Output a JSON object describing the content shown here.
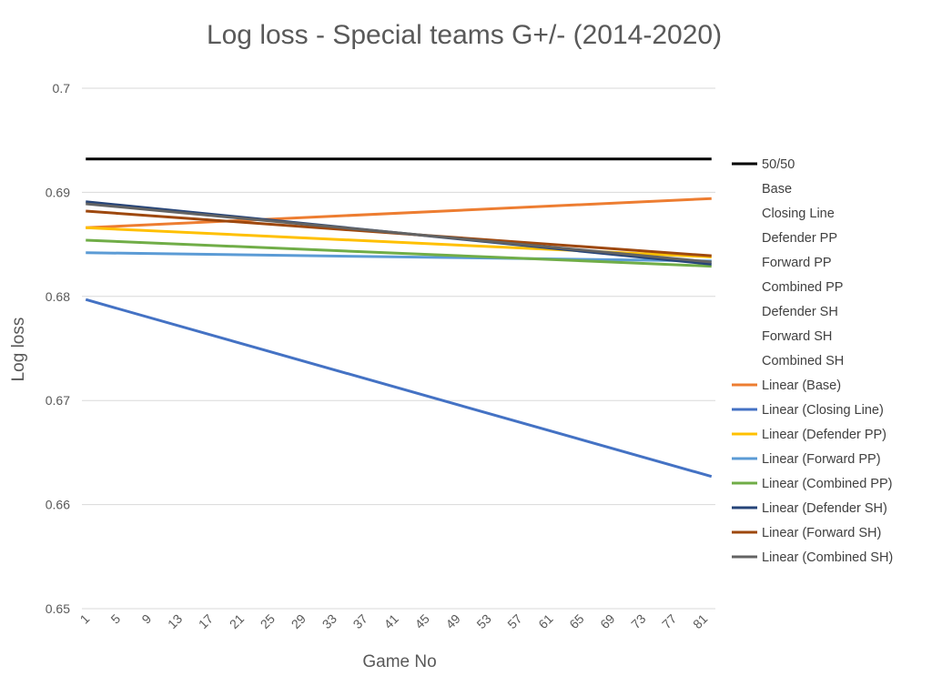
{
  "chart_data": {
    "type": "line",
    "title": "Log loss - Special teams G+/- (2014-2020)",
    "xlabel": "Game No",
    "ylabel": "Log loss",
    "ylim": [
      0.65,
      0.7
    ],
    "yticks": [
      "0.65",
      "0.66",
      "0.67",
      "0.68",
      "0.69",
      "0.7"
    ],
    "xlim": [
      1,
      82
    ],
    "xticks": [
      1,
      5,
      9,
      13,
      17,
      21,
      25,
      29,
      33,
      37,
      41,
      45,
      49,
      53,
      57,
      61,
      65,
      69,
      73,
      77,
      81
    ],
    "grid": true,
    "legend_position": "right",
    "legend": [
      {
        "name": "50/50",
        "color": "#000000",
        "marker": "line"
      },
      {
        "name": "Base",
        "color": "",
        "marker": "none"
      },
      {
        "name": "Closing Line",
        "color": "",
        "marker": "none"
      },
      {
        "name": "Defender PP",
        "color": "",
        "marker": "none"
      },
      {
        "name": "Forward PP",
        "color": "",
        "marker": "none"
      },
      {
        "name": "Combined PP",
        "color": "",
        "marker": "none"
      },
      {
        "name": "Defender SH",
        "color": "",
        "marker": "none"
      },
      {
        "name": "Forward SH",
        "color": "",
        "marker": "none"
      },
      {
        "name": "Combined SH",
        "color": "",
        "marker": "none"
      },
      {
        "name": "Linear (Base)",
        "color": "#ED7D31",
        "marker": "line"
      },
      {
        "name": "Linear (Closing Line)",
        "color": "#4472C4",
        "marker": "line"
      },
      {
        "name": "Linear (Defender PP)",
        "color": "#FFC000",
        "marker": "line"
      },
      {
        "name": "Linear (Forward PP)",
        "color": "#5B9BD5",
        "marker": "line"
      },
      {
        "name": "Linear (Combined PP)",
        "color": "#70AD47",
        "marker": "line"
      },
      {
        "name": "Linear (Defender SH)",
        "color": "#264478",
        "marker": "line"
      },
      {
        "name": "Linear (Forward SH)",
        "color": "#9E480E",
        "marker": "line"
      },
      {
        "name": "Linear (Combined SH)",
        "color": "#636363",
        "marker": "line"
      }
    ],
    "series": [
      {
        "name": "50/50",
        "color": "#000000",
        "width": 3,
        "x": [
          1,
          82
        ],
        "y": [
          0.6932,
          0.6932
        ]
      },
      {
        "name": "Linear (Base)",
        "color": "#ED7D31",
        "width": 3,
        "x": [
          1,
          82
        ],
        "y": [
          0.6866,
          0.6894
        ]
      },
      {
        "name": "Linear (Closing Line)",
        "color": "#4472C4",
        "width": 3,
        "x": [
          1,
          82
        ],
        "y": [
          0.6797,
          0.6627
        ]
      },
      {
        "name": "Linear (Defender PP)",
        "color": "#FFC000",
        "width": 3,
        "x": [
          1,
          82
        ],
        "y": [
          0.6866,
          0.6838
        ]
      },
      {
        "name": "Linear (Forward PP)",
        "color": "#5B9BD5",
        "width": 3,
        "x": [
          1,
          82
        ],
        "y": [
          0.6842,
          0.6834
        ]
      },
      {
        "name": "Linear (Combined PP)",
        "color": "#70AD47",
        "width": 3,
        "x": [
          1,
          82
        ],
        "y": [
          0.6854,
          0.6829
        ]
      },
      {
        "name": "Linear (Defender SH)",
        "color": "#264478",
        "width": 3,
        "x": [
          1,
          82
        ],
        "y": [
          0.6891,
          0.6831
        ]
      },
      {
        "name": "Linear (Forward SH)",
        "color": "#9E480E",
        "width": 3,
        "x": [
          1,
          82
        ],
        "y": [
          0.6882,
          0.6839
        ]
      },
      {
        "name": "Linear (Combined SH)",
        "color": "#636363",
        "width": 3,
        "x": [
          1,
          82
        ],
        "y": [
          0.6889,
          0.6833
        ]
      }
    ]
  }
}
